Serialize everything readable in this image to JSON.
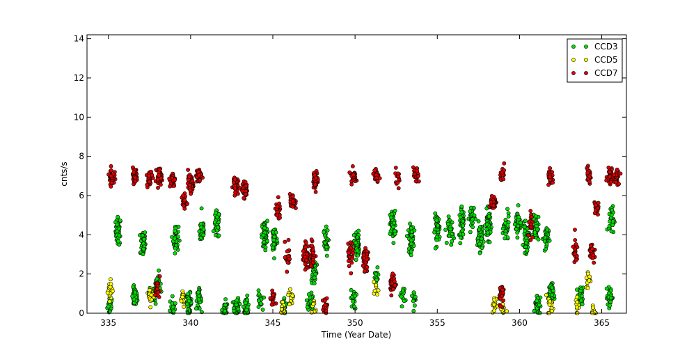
{
  "chart_data": {
    "type": "scatter",
    "title": "",
    "xlabel": "Time (Year Date)",
    "ylabel": "cnts/s",
    "xlim": [
      333.7,
      366.5
    ],
    "ylim": [
      0,
      14.2
    ],
    "xticks": [
      335,
      340,
      345,
      350,
      355,
      360,
      365
    ],
    "yticks": [
      0,
      2,
      4,
      6,
      8,
      10,
      12,
      14
    ],
    "grid": false,
    "legend": "top-right",
    "series": [
      {
        "name": "CCD3",
        "color": "#00dd00",
        "clusters": [
          {
            "x": 335.1,
            "y": 0.4,
            "n": 20
          },
          {
            "x": 335.6,
            "y": 4.2,
            "n": 40
          },
          {
            "x": 336.6,
            "y": 0.8,
            "n": 40
          },
          {
            "x": 337.1,
            "y": 3.6,
            "n": 40
          },
          {
            "x": 337.8,
            "y": 1.0,
            "n": 40
          },
          {
            "x": 338.0,
            "y": 1.6,
            "n": 20
          },
          {
            "x": 338.9,
            "y": 0.3,
            "n": 20
          },
          {
            "x": 339.1,
            "y": 3.8,
            "n": 40
          },
          {
            "x": 339.9,
            "y": 0.5,
            "n": 40
          },
          {
            "x": 340.5,
            "y": 0.7,
            "n": 30
          },
          {
            "x": 340.7,
            "y": 4.2,
            "n": 40
          },
          {
            "x": 341.6,
            "y": 4.5,
            "n": 50
          },
          {
            "x": 342.1,
            "y": 0.1,
            "n": 30
          },
          {
            "x": 342.8,
            "y": 0.3,
            "n": 40
          },
          {
            "x": 343.4,
            "y": 0.3,
            "n": 40
          },
          {
            "x": 344.2,
            "y": 0.6,
            "n": 20
          },
          {
            "x": 344.5,
            "y": 4.0,
            "n": 60
          },
          {
            "x": 345.1,
            "y": 3.8,
            "n": 50
          },
          {
            "x": 345.7,
            "y": 0.3,
            "n": 20
          },
          {
            "x": 347.3,
            "y": 0.6,
            "n": 30
          },
          {
            "x": 347.5,
            "y": 2.2,
            "n": 40
          },
          {
            "x": 348.2,
            "y": 3.6,
            "n": 30
          },
          {
            "x": 349.9,
            "y": 0.7,
            "n": 20
          },
          {
            "x": 350.1,
            "y": 3.5,
            "n": 50
          },
          {
            "x": 351.3,
            "y": 1.8,
            "n": 15
          },
          {
            "x": 352.3,
            "y": 4.5,
            "n": 60
          },
          {
            "x": 352.9,
            "y": 0.9,
            "n": 15
          },
          {
            "x": 353.4,
            "y": 3.8,
            "n": 50
          },
          {
            "x": 353.6,
            "y": 0.9,
            "n": 15
          },
          {
            "x": 355.0,
            "y": 4.3,
            "n": 50
          },
          {
            "x": 355.8,
            "y": 4.2,
            "n": 40
          },
          {
            "x": 356.5,
            "y": 4.6,
            "n": 40
          },
          {
            "x": 357.1,
            "y": 4.9,
            "n": 30
          },
          {
            "x": 357.6,
            "y": 3.9,
            "n": 50
          },
          {
            "x": 358.1,
            "y": 4.5,
            "n": 60
          },
          {
            "x": 359.2,
            "y": 4.3,
            "n": 40
          },
          {
            "x": 359.9,
            "y": 4.6,
            "n": 50
          },
          {
            "x": 360.4,
            "y": 3.8,
            "n": 40
          },
          {
            "x": 361.0,
            "y": 4.4,
            "n": 40
          },
          {
            "x": 361.1,
            "y": 0.5,
            "n": 40
          },
          {
            "x": 361.6,
            "y": 3.8,
            "n": 30
          },
          {
            "x": 361.9,
            "y": 1.0,
            "n": 40
          },
          {
            "x": 363.7,
            "y": 0.8,
            "n": 30
          },
          {
            "x": 365.5,
            "y": 0.8,
            "n": 40
          },
          {
            "x": 365.6,
            "y": 4.8,
            "n": 30
          }
        ]
      },
      {
        "name": "CCD5",
        "color": "#ffff00",
        "clusters": [
          {
            "x": 335.1,
            "y": 1.2,
            "n": 20
          },
          {
            "x": 337.6,
            "y": 0.9,
            "n": 25
          },
          {
            "x": 339.5,
            "y": 0.8,
            "n": 20
          },
          {
            "x": 345.6,
            "y": 0.3,
            "n": 15
          },
          {
            "x": 346.1,
            "y": 0.8,
            "n": 15
          },
          {
            "x": 347.5,
            "y": 0.4,
            "n": 10
          },
          {
            "x": 351.3,
            "y": 1.1,
            "n": 8
          },
          {
            "x": 358.5,
            "y": 0.4,
            "n": 15
          },
          {
            "x": 359.0,
            "y": 0.2,
            "n": 10
          },
          {
            "x": 361.9,
            "y": 0.4,
            "n": 15
          },
          {
            "x": 363.5,
            "y": 0.4,
            "n": 12
          },
          {
            "x": 364.2,
            "y": 1.7,
            "n": 15
          },
          {
            "x": 364.5,
            "y": 0.05,
            "n": 10
          }
        ]
      },
      {
        "name": "CCD7",
        "color": "#dd0000",
        "clusters": [
          {
            "x": 335.2,
            "y": 7.0,
            "n": 40
          },
          {
            "x": 336.6,
            "y": 7.0,
            "n": 40
          },
          {
            "x": 337.5,
            "y": 6.9,
            "n": 40
          },
          {
            "x": 338.1,
            "y": 7.0,
            "n": 40
          },
          {
            "x": 338.0,
            "y": 1.2,
            "n": 20
          },
          {
            "x": 338.9,
            "y": 6.8,
            "n": 25
          },
          {
            "x": 339.6,
            "y": 5.7,
            "n": 30
          },
          {
            "x": 340.0,
            "y": 6.6,
            "n": 60
          },
          {
            "x": 340.5,
            "y": 7.0,
            "n": 40
          },
          {
            "x": 342.7,
            "y": 6.6,
            "n": 50
          },
          {
            "x": 343.3,
            "y": 6.3,
            "n": 50
          },
          {
            "x": 345.3,
            "y": 5.2,
            "n": 30
          },
          {
            "x": 345.0,
            "y": 0.7,
            "n": 20
          },
          {
            "x": 345.9,
            "y": 2.9,
            "n": 20
          },
          {
            "x": 346.2,
            "y": 5.7,
            "n": 30
          },
          {
            "x": 347.0,
            "y": 2.9,
            "n": 40
          },
          {
            "x": 347.6,
            "y": 6.8,
            "n": 50
          },
          {
            "x": 347.4,
            "y": 3.0,
            "n": 30
          },
          {
            "x": 348.2,
            "y": 0.3,
            "n": 20
          },
          {
            "x": 349.7,
            "y": 3.1,
            "n": 30
          },
          {
            "x": 349.9,
            "y": 7.0,
            "n": 25
          },
          {
            "x": 350.6,
            "y": 2.8,
            "n": 40
          },
          {
            "x": 351.3,
            "y": 7.0,
            "n": 25
          },
          {
            "x": 352.3,
            "y": 1.5,
            "n": 40
          },
          {
            "x": 352.6,
            "y": 7.0,
            "n": 15
          },
          {
            "x": 353.7,
            "y": 7.0,
            "n": 25
          },
          {
            "x": 358.4,
            "y": 5.6,
            "n": 40
          },
          {
            "x": 358.9,
            "y": 1.0,
            "n": 30
          },
          {
            "x": 359.0,
            "y": 7.1,
            "n": 15
          },
          {
            "x": 360.7,
            "y": 4.3,
            "n": 20
          },
          {
            "x": 361.9,
            "y": 6.9,
            "n": 30
          },
          {
            "x": 363.4,
            "y": 3.1,
            "n": 25
          },
          {
            "x": 364.2,
            "y": 7.0,
            "n": 30
          },
          {
            "x": 364.4,
            "y": 3.1,
            "n": 25
          },
          {
            "x": 364.7,
            "y": 5.4,
            "n": 20
          },
          {
            "x": 365.5,
            "y": 7.0,
            "n": 40
          },
          {
            "x": 365.9,
            "y": 7.0,
            "n": 30
          }
        ]
      }
    ]
  }
}
